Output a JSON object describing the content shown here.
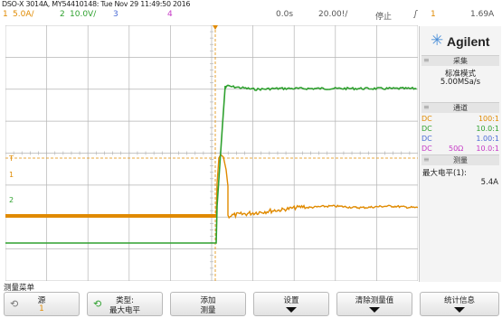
{
  "header": {
    "model_line": "DSO-X 3014A, MY54410148: Tue Nov 29 11:49:50 2016",
    "ch1_num": "1",
    "ch1_scale": "5.0A/",
    "ch2_num": "2",
    "ch2_scale": "10.0V/",
    "ch3_num": "3",
    "ch4_num": "4",
    "time_offset": "0.0s",
    "timebase": "20.00!/",
    "run_state": "停止",
    "trigger_icon": "ʃ",
    "trigger_ch": "1",
    "trigger_level": "1.69A"
  },
  "panel": {
    "brand": "Agilent",
    "logo_icon": "agilent-spark-icon",
    "acq_header": "采集",
    "acq_mode": "标准模式",
    "acq_rate": "5.00MSa/s",
    "channels_header": "通道",
    "channels": [
      {
        "coupling": "DC",
        "imp": "",
        "ratio": "100:1",
        "color": "#e08a00"
      },
      {
        "coupling": "DC",
        "imp": "",
        "ratio": "10.0:1",
        "color": "#2fa12f"
      },
      {
        "coupling": "DC",
        "imp": "",
        "ratio": "1.00:1",
        "color": "#4b6cd6"
      },
      {
        "coupling": "DC",
        "imp": "50Ω",
        "ratio": "10.0:1",
        "color": "#c63ac6"
      }
    ],
    "measure_header": "测量",
    "measure_name": "最大电平(1):",
    "measure_value": "5.4A"
  },
  "scope": {
    "ch1_marker": "1",
    "ch2_marker": "2",
    "trig_marker": "T",
    "colors": {
      "ch1": "#e08a00",
      "ch2": "#2fa12f",
      "grid": "#b5b5b5",
      "cursor": "#e08a00"
    }
  },
  "menu": {
    "title": "测量菜单",
    "softkeys": [
      {
        "l1": "源",
        "l2": "1"
      },
      {
        "l1": "类型:",
        "l2": "最大电平"
      },
      {
        "l1": "添加",
        "l2": "测量"
      },
      {
        "l1": "设置",
        "l2": ""
      },
      {
        "l1": "清除测量值",
        "l2": ""
      },
      {
        "l1": "统计信息",
        "l2": ""
      }
    ]
  }
}
